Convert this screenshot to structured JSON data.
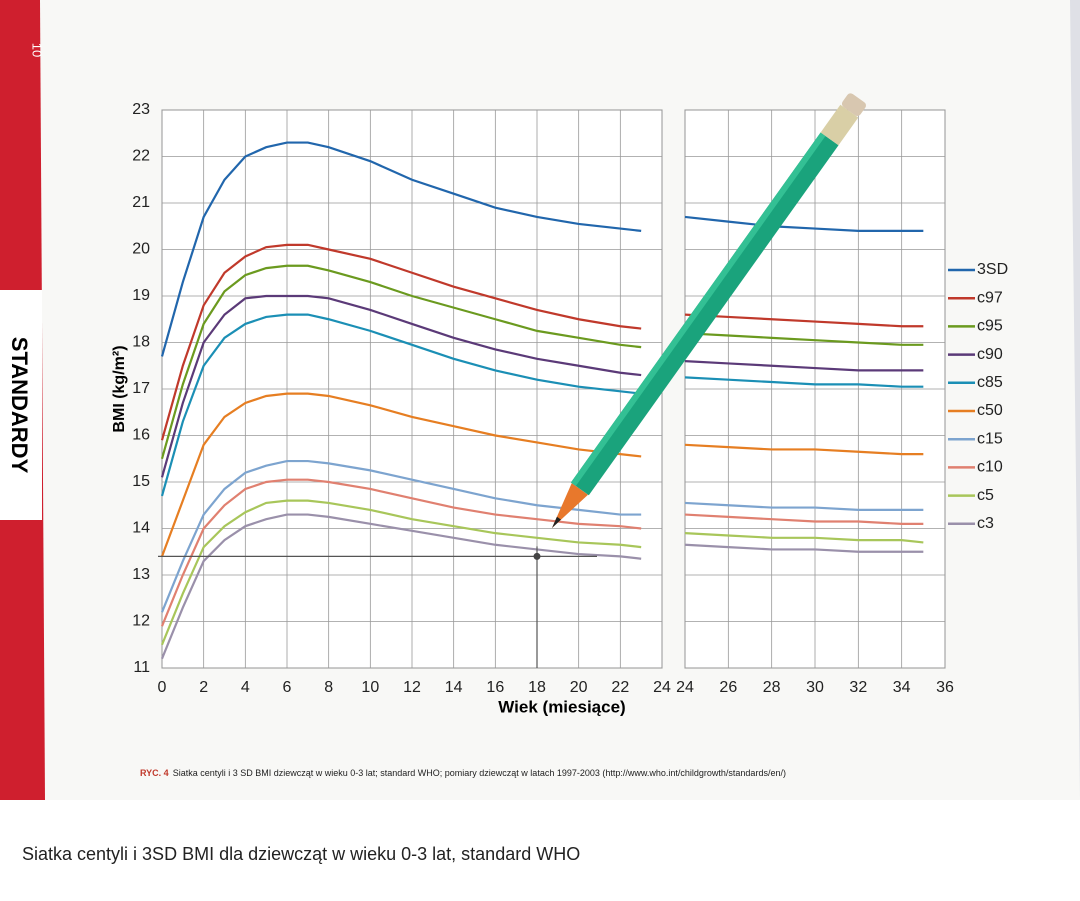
{
  "page_number": "10",
  "book_label": "STANDARDY",
  "figure_caption_label": "RYC. 4",
  "figure_caption": "Siatka centyli i 3 SD BMI dziewcząt w wieku 0-3 lat; standard WHO; pomiary dziewcząt w latach 1997-2003 (http://www.who.int/childgrowth/standards/en/)",
  "photo_caption": "Siatka centyli i 3SD BMI dla dziewcząt w wieku 0-3 lat, standard WHO",
  "chart_data": [
    {
      "type": "line",
      "ylabel": "BMI (kg/m²)",
      "xlabel": "Wiek (miesiące)",
      "x": [
        0,
        1,
        2,
        3,
        4,
        5,
        6,
        7,
        8,
        10,
        12,
        14,
        16,
        18,
        20,
        22,
        23
      ],
      "xlim": [
        0,
        24
      ],
      "ylim": [
        11,
        23
      ],
      "xticks": [
        0,
        2,
        4,
        6,
        8,
        10,
        12,
        14,
        16,
        18,
        20,
        22,
        24
      ],
      "yticks": [
        11,
        12,
        13,
        14,
        15,
        16,
        17,
        18,
        19,
        20,
        21,
        22,
        23
      ],
      "grid": true,
      "point": {
        "x": 18,
        "y": 13.4
      },
      "series": [
        {
          "color": "#2166ac",
          "values": [
            17.7,
            19.3,
            20.7,
            21.5,
            22.0,
            22.2,
            22.3,
            22.3,
            22.2,
            21.9,
            21.5,
            21.2,
            20.9,
            20.7,
            20.55,
            20.45,
            20.4
          ]
        },
        {
          "color": "#c0392b",
          "values": [
            15.9,
            17.5,
            18.8,
            19.5,
            19.85,
            20.05,
            20.1,
            20.1,
            20.0,
            19.8,
            19.5,
            19.2,
            18.95,
            18.7,
            18.5,
            18.35,
            18.3
          ]
        },
        {
          "color": "#6b9a1f",
          "values": [
            15.5,
            17.1,
            18.4,
            19.1,
            19.45,
            19.6,
            19.65,
            19.65,
            19.55,
            19.3,
            19.0,
            18.75,
            18.5,
            18.25,
            18.1,
            17.95,
            17.9
          ]
        },
        {
          "color": "#5b3a78",
          "values": [
            15.1,
            16.7,
            18.0,
            18.6,
            18.95,
            19.0,
            19.0,
            19.0,
            18.95,
            18.7,
            18.4,
            18.1,
            17.85,
            17.65,
            17.5,
            17.35,
            17.3
          ]
        },
        {
          "color": "#1b8fb5",
          "values": [
            14.7,
            16.3,
            17.5,
            18.1,
            18.4,
            18.55,
            18.6,
            18.6,
            18.5,
            18.25,
            17.95,
            17.65,
            17.4,
            17.2,
            17.05,
            16.95,
            16.9
          ]
        },
        {
          "color": "#e67e22",
          "values": [
            13.4,
            14.6,
            15.8,
            16.4,
            16.7,
            16.85,
            16.9,
            16.9,
            16.85,
            16.65,
            16.4,
            16.2,
            16.0,
            15.85,
            15.7,
            15.6,
            15.55
          ]
        },
        {
          "color": "#7da4cf",
          "values": [
            12.2,
            13.3,
            14.3,
            14.85,
            15.2,
            15.35,
            15.45,
            15.45,
            15.4,
            15.25,
            15.05,
            14.85,
            14.65,
            14.5,
            14.4,
            14.3,
            14.3
          ]
        },
        {
          "color": "#e08070",
          "values": [
            11.9,
            13.0,
            14.0,
            14.5,
            14.85,
            15.0,
            15.05,
            15.05,
            15.0,
            14.85,
            14.65,
            14.45,
            14.3,
            14.2,
            14.1,
            14.05,
            14.0
          ]
        },
        {
          "color": "#a8c65a",
          "values": [
            11.5,
            12.6,
            13.6,
            14.05,
            14.35,
            14.55,
            14.6,
            14.6,
            14.55,
            14.4,
            14.2,
            14.05,
            13.9,
            13.8,
            13.7,
            13.65,
            13.6
          ]
        },
        {
          "color": "#9a90aa",
          "values": [
            11.2,
            12.3,
            13.3,
            13.75,
            14.05,
            14.2,
            14.3,
            14.3,
            14.25,
            14.1,
            13.95,
            13.8,
            13.65,
            13.55,
            13.45,
            13.4,
            13.35
          ]
        }
      ]
    },
    {
      "type": "line",
      "x": [
        24,
        26,
        28,
        30,
        32,
        34,
        35
      ],
      "xlim": [
        24,
        36
      ],
      "ylim": [
        11,
        23
      ],
      "xticks": [
        24,
        26,
        28,
        30,
        32,
        34,
        36
      ],
      "grid": true,
      "legend": "right",
      "series": [
        {
          "name": "3SD",
          "color": "#2166ac",
          "values": [
            20.7,
            20.6,
            20.5,
            20.45,
            20.4,
            20.4,
            20.4
          ]
        },
        {
          "name": "c97",
          "color": "#c0392b",
          "values": [
            18.6,
            18.55,
            18.5,
            18.45,
            18.4,
            18.35,
            18.35
          ]
        },
        {
          "name": "c95",
          "color": "#6b9a1f",
          "values": [
            18.2,
            18.15,
            18.1,
            18.05,
            18.0,
            17.95,
            17.95
          ]
        },
        {
          "name": "c90",
          "color": "#5b3a78",
          "values": [
            17.6,
            17.55,
            17.5,
            17.45,
            17.4,
            17.4,
            17.4
          ]
        },
        {
          "name": "c85",
          "color": "#1b8fb5",
          "values": [
            17.25,
            17.2,
            17.15,
            17.1,
            17.1,
            17.05,
            17.05
          ]
        },
        {
          "name": "c50",
          "color": "#e67e22",
          "values": [
            15.8,
            15.75,
            15.7,
            15.7,
            15.65,
            15.6,
            15.6
          ]
        },
        {
          "name": "c15",
          "color": "#7da4cf",
          "values": [
            14.55,
            14.5,
            14.45,
            14.45,
            14.4,
            14.4,
            14.4
          ]
        },
        {
          "name": "c10",
          "color": "#e08070",
          "values": [
            14.3,
            14.25,
            14.2,
            14.15,
            14.15,
            14.1,
            14.1
          ]
        },
        {
          "name": "c5",
          "color": "#a8c65a",
          "values": [
            13.9,
            13.85,
            13.8,
            13.8,
            13.75,
            13.75,
            13.7
          ]
        },
        {
          "name": "c3",
          "color": "#9a90aa",
          "values": [
            13.65,
            13.6,
            13.55,
            13.55,
            13.5,
            13.5,
            13.5
          ]
        }
      ]
    }
  ]
}
